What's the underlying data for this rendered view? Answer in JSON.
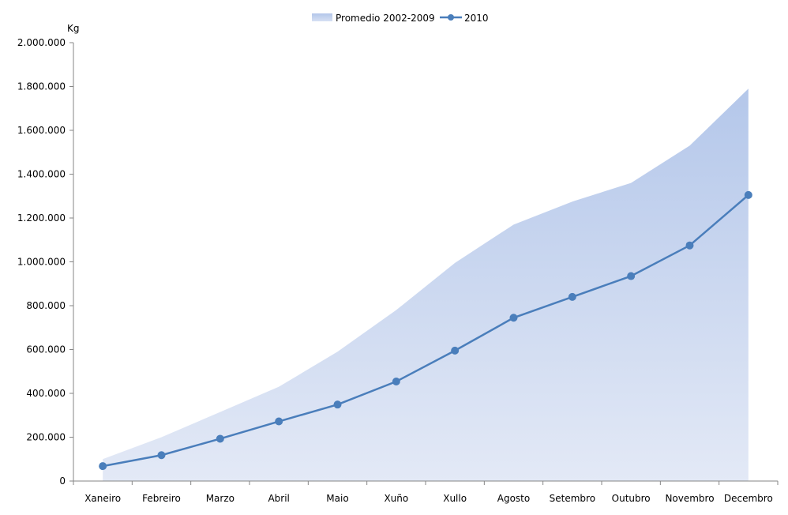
{
  "chart_data": {
    "type": "area",
    "unit_label": "Kg",
    "categories": [
      "Xaneiro",
      "Febreiro",
      "Marzo",
      "Abril",
      "Maio",
      "Xuño",
      "Xullo",
      "Agosto",
      "Setembro",
      "Outubro",
      "Novembro",
      "Decembro"
    ],
    "series": [
      {
        "name": "Promedio 2002-2009",
        "type": "area",
        "color": "#b4c7e7",
        "values": [
          100000,
          200000,
          315000,
          430000,
          590000,
          780000,
          995000,
          1170000,
          1275000,
          1360000,
          1530000,
          1790000
        ]
      },
      {
        "name": "2010",
        "type": "line",
        "color": "#4a7ebb",
        "values": [
          68000,
          118000,
          193000,
          272000,
          349000,
          454000,
          595000,
          745000,
          840000,
          935000,
          1075000,
          1305000
        ]
      }
    ],
    "ylim": [
      0,
      2000000
    ],
    "yticks": [
      "0",
      "200.000",
      "400.000",
      "600.000",
      "800.000",
      "1.000.000",
      "1.200.000",
      "1.400.000",
      "1.600.000",
      "1.800.000",
      "2.000.000"
    ],
    "legend_position": "top-center",
    "grid": false
  }
}
